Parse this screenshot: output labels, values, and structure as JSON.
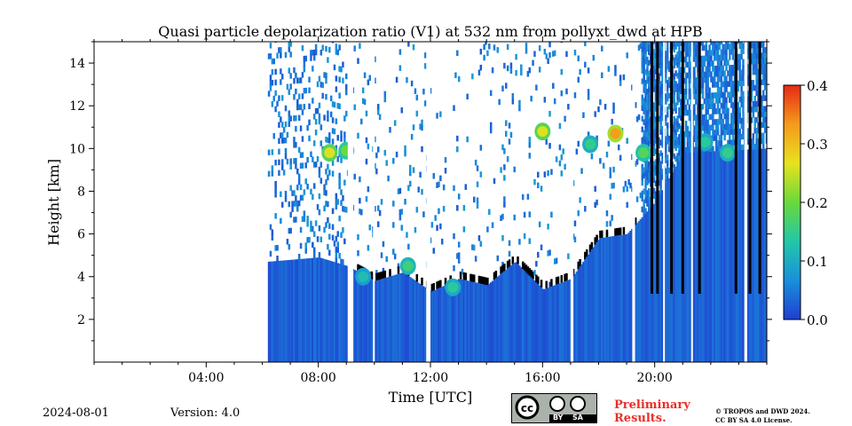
{
  "chart_data": {
    "type": "heatmap",
    "title": "Quasi particle depolarization ratio (V1) at 532 nm from pollyxt_dwd at HPB",
    "xlabel": "Time [UTC]",
    "ylabel": "Height [km]",
    "x_tick_labels": [
      "04:00",
      "08:00",
      "12:00",
      "16:00",
      "20:00"
    ],
    "x_ticks_hours": [
      4,
      8,
      12,
      16,
      20
    ],
    "xlim_hours": [
      0,
      24
    ],
    "y_ticks": [
      2,
      4,
      6,
      8,
      10,
      12,
      14
    ],
    "ylim": [
      0,
      15
    ],
    "data_start_hour": 6.2,
    "colorbar": {
      "range": [
        0.0,
        0.4
      ],
      "tick_labels": [
        "0.0",
        "0.1",
        "0.2",
        "0.3",
        "0.4"
      ],
      "ticks": [
        0.0,
        0.1,
        0.2,
        0.3,
        0.4
      ],
      "colormap": [
        "#1f3fd0",
        "#1a8fdc",
        "#22c7a8",
        "#6ad93b",
        "#e8e21e",
        "#f59a1c",
        "#e52a14"
      ]
    },
    "colors": {
      "low_layer": "#1e5fd8",
      "strong_signal": "#000000",
      "missing_data": "#ffffff"
    },
    "boundary_layer_top_km": [
      {
        "hour": 6.2,
        "km": 4.7
      },
      {
        "hour": 8.0,
        "km": 4.9
      },
      {
        "hour": 9.0,
        "km": 4.5
      },
      {
        "hour": 10.0,
        "km": 3.8
      },
      {
        "hour": 11.0,
        "km": 4.2
      },
      {
        "hour": 12.0,
        "km": 3.3
      },
      {
        "hour": 13.0,
        "km": 3.9
      },
      {
        "hour": 14.0,
        "km": 3.6
      },
      {
        "hour": 15.0,
        "km": 4.7
      },
      {
        "hour": 16.0,
        "km": 3.4
      },
      {
        "hour": 17.0,
        "km": 3.9
      },
      {
        "hour": 18.0,
        "km": 5.8
      },
      {
        "hour": 19.0,
        "km": 6.0
      },
      {
        "hour": 20.0,
        "km": 7.5
      },
      {
        "hour": 21.0,
        "km": 9.8
      },
      {
        "hour": 24.0,
        "km": 10.0
      }
    ],
    "high_depol_patches": [
      {
        "hour": 8.4,
        "km": 9.8,
        "value": 0.26
      },
      {
        "hour": 9.0,
        "km": 9.9,
        "value": 0.2
      },
      {
        "hour": 16.0,
        "km": 10.8,
        "value": 0.26
      },
      {
        "hour": 17.7,
        "km": 10.2,
        "value": 0.15
      },
      {
        "hour": 18.6,
        "km": 10.7,
        "value": 0.33
      },
      {
        "hour": 19.6,
        "km": 9.8,
        "value": 0.18
      },
      {
        "hour": 21.8,
        "km": 10.3,
        "value": 0.14
      },
      {
        "hour": 22.6,
        "km": 9.8,
        "value": 0.15
      },
      {
        "hour": 11.2,
        "km": 4.5,
        "value": 0.16
      },
      {
        "hour": 12.8,
        "km": 3.5,
        "value": 0.14
      },
      {
        "hour": 9.6,
        "km": 4.0,
        "value": 0.12
      }
    ],
    "data_gaps_hours": [
      [
        9.05,
        9.25
      ],
      [
        9.95,
        10.0
      ],
      [
        11.85,
        12.0
      ],
      [
        17.0,
        17.1
      ],
      [
        19.2,
        19.3
      ],
      [
        20.3,
        20.35
      ],
      [
        21.3,
        21.35
      ],
      [
        23.2,
        23.3
      ]
    ],
    "black_columns_hours": [
      19.9,
      20.1,
      20.6,
      21.0,
      21.6,
      22.9,
      23.4,
      23.75
    ]
  },
  "footer": {
    "date": "2024-08-01",
    "version": "Version: 4.0",
    "preliminary_line1": "Preliminary",
    "preliminary_line2": "Results.",
    "copyright_line1": "© TROPOS and DWD 2024.",
    "copyright_line2": "CC BY SA 4.0 License.",
    "license_badge": {
      "cc": "cc",
      "by": "BY",
      "sa": "SA"
    }
  }
}
